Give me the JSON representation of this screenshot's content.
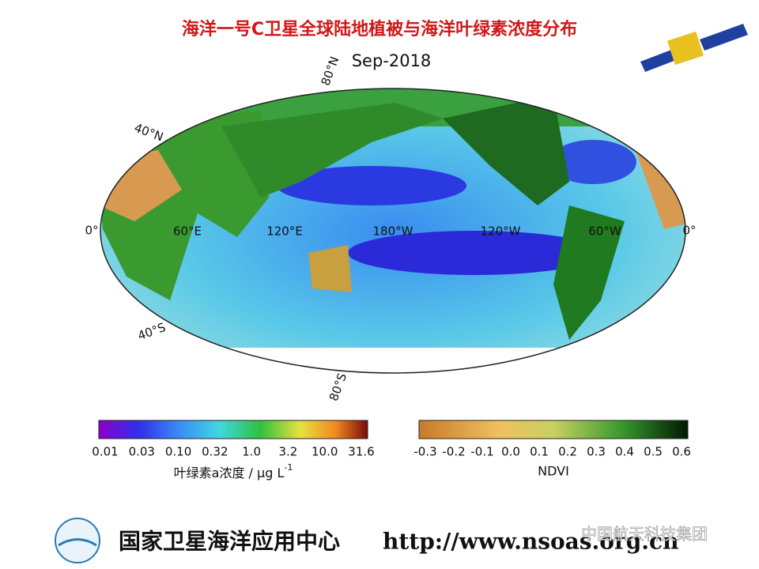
{
  "header": {
    "title": "海洋一号C卫星全球陆地植被与海洋叶绿素浓度分布"
  },
  "map": {
    "date": "Sep-2018",
    "lat_labels": [
      "80°N",
      "40°N",
      "0°",
      "0°",
      "40°S",
      "80°S"
    ],
    "lon_labels": [
      "60°E",
      "120°E",
      "180°W",
      "120°W",
      "60°W"
    ]
  },
  "legend": {
    "chlorophyll": {
      "ticks": [
        "0.01",
        "0.03",
        "0.10",
        "0.32",
        "1.0",
        "3.2",
        "10.0",
        "31.6"
      ],
      "label": "叶绿素a浓度 / μg L",
      "label_sup": "-1"
    },
    "ndvi": {
      "ticks": [
        "-0.3",
        "-0.2",
        "-0.1",
        "0.0",
        "0.1",
        "0.2",
        "0.3",
        "0.4",
        "0.5",
        "0.6"
      ],
      "label": "NDVI"
    }
  },
  "footer": {
    "organization": "国家卫星海洋应用中心",
    "url": "http://www.nsoas.org.cn",
    "watermark": "中国航天科技集团"
  }
}
